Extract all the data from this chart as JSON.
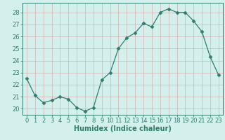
{
  "x": [
    0,
    1,
    2,
    3,
    4,
    5,
    6,
    7,
    8,
    9,
    10,
    11,
    12,
    13,
    14,
    15,
    16,
    17,
    18,
    19,
    20,
    21,
    22,
    23
  ],
  "y": [
    22.5,
    21.1,
    20.5,
    20.7,
    21.0,
    20.8,
    20.1,
    19.8,
    20.1,
    22.4,
    23.0,
    25.0,
    25.9,
    26.3,
    27.1,
    26.8,
    28.0,
    28.3,
    28.0,
    28.0,
    27.3,
    26.4,
    24.3,
    22.8
  ],
  "line_color": "#2e7d6e",
  "marker": "D",
  "marker_size": 2.5,
  "bg_color": "#d4f0ec",
  "grid_color": "#c0ddd8",
  "axis_color": "#2e7d6e",
  "xlabel": "Humidex (Indice chaleur)",
  "xlim": [
    -0.5,
    23.5
  ],
  "ylim": [
    19.5,
    28.8
  ],
  "yticks": [
    20,
    21,
    22,
    23,
    24,
    25,
    26,
    27,
    28
  ],
  "xticks": [
    0,
    1,
    2,
    3,
    4,
    5,
    6,
    7,
    8,
    9,
    10,
    11,
    12,
    13,
    14,
    15,
    16,
    17,
    18,
    19,
    20,
    21,
    22,
    23
  ],
  "xlabel_fontsize": 7,
  "tick_fontsize": 6
}
